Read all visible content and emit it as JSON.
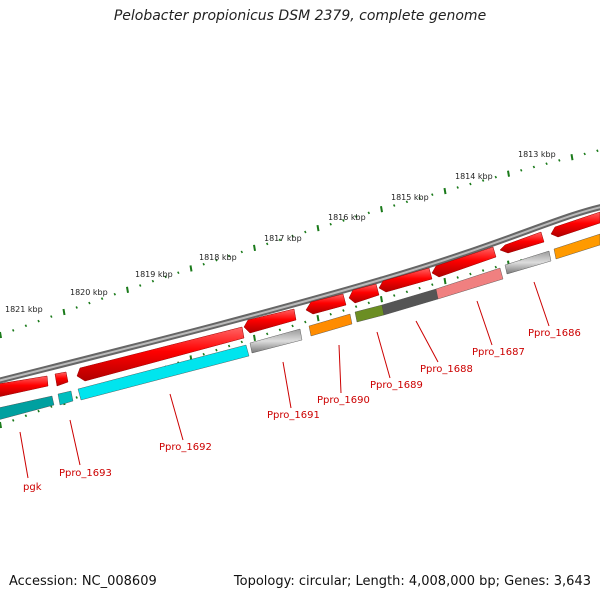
{
  "title": "Pelobacter propionicus DSM 2379, complete genome",
  "footer": {
    "accession": "Accession: NC_008609",
    "stats": "Topology: circular; Length: 4,008,000 bp; Genes: 3,643"
  },
  "ruler": {
    "labels": [
      "1813 kbp",
      "1814 kbp",
      "1815 kbp",
      "1816 kbp",
      "1817 kbp",
      "1818 kbp",
      "1819 kbp",
      "1820 kbp",
      "1821 kbp"
    ]
  },
  "genes": [
    {
      "name": "Ppro_1686",
      "color": "#c0c0c0"
    },
    {
      "name": "Ppro_1687",
      "color": "#f08080"
    },
    {
      "name": "Ppro_1688",
      "color": "#555555"
    },
    {
      "name": "Ppro_1689",
      "color": "#6b8e23"
    },
    {
      "name": "Ppro_1690",
      "color": "#ff8c00"
    },
    {
      "name": "Ppro_1691",
      "color": "#c0c0c0"
    },
    {
      "name": "Ppro_1692",
      "color": "#00e5ee"
    },
    {
      "name": "Ppro_1693",
      "color": "#00bfbf"
    },
    {
      "name": "pgk",
      "color": "#00a0a0"
    }
  ],
  "colors": {
    "cds": "#ee0000",
    "backbone": "#777777",
    "ticks": "#1a7a1a",
    "label": "#cc0000"
  }
}
